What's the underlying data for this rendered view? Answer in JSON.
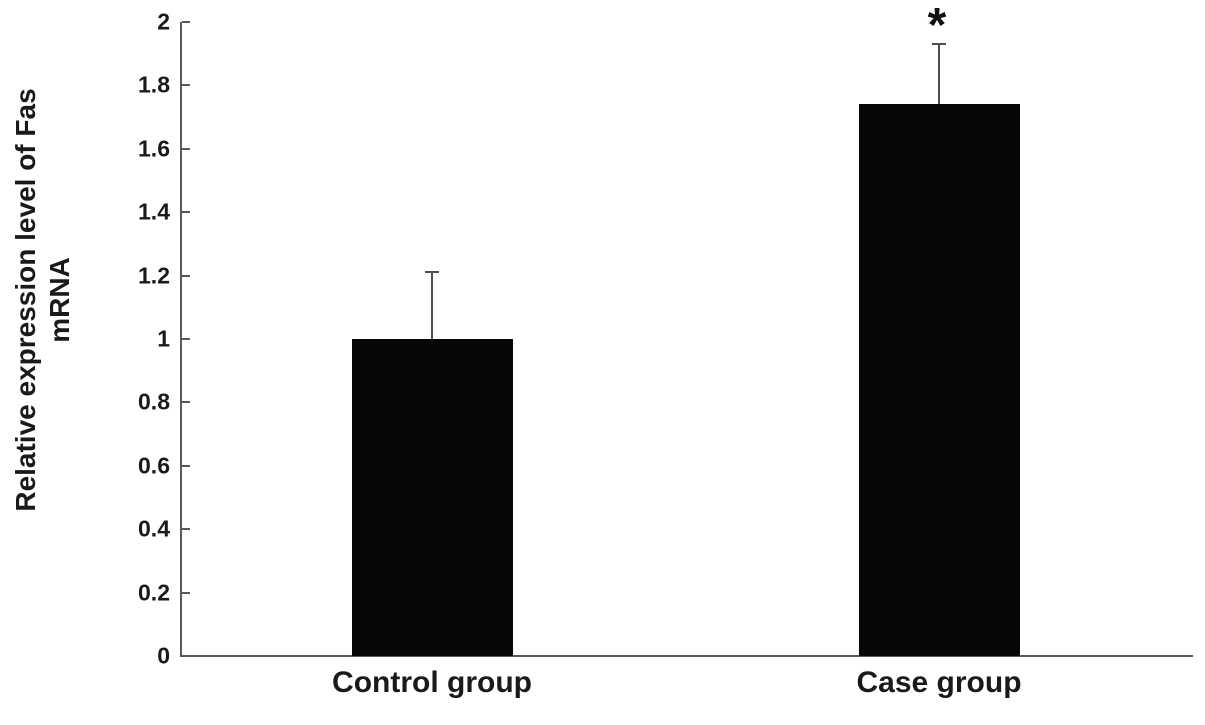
{
  "chart_data": {
    "type": "bar",
    "title": "",
    "xlabel": "",
    "ylabel": "Relative expression level of Fas mRNA",
    "ylabel_lines": [
      "Relative expression level of Fas",
      "mRNA"
    ],
    "categories": [
      "Control group",
      "Case group"
    ],
    "values": [
      1.0,
      1.74
    ],
    "errors_plus": [
      0.21,
      0.19
    ],
    "annotations": [
      "",
      "*"
    ],
    "ylim": [
      0,
      2
    ],
    "yticks": [
      0,
      0.2,
      0.4,
      0.6,
      0.8,
      1,
      1.2,
      1.4,
      1.6,
      1.8,
      2
    ],
    "ytick_labels": [
      "0",
      "0.2",
      "0.4",
      "0.6",
      "0.8",
      "1",
      "1.2",
      "1.4",
      "1.6",
      "1.8",
      "2"
    ],
    "grid": false,
    "legend": false,
    "legend_position": "none",
    "bar_color": "#070707",
    "axis_color": "#595959",
    "error_bar_color": "#4d4d4d",
    "text_color": "#1a1a1a",
    "background_color": "#ffffff"
  }
}
